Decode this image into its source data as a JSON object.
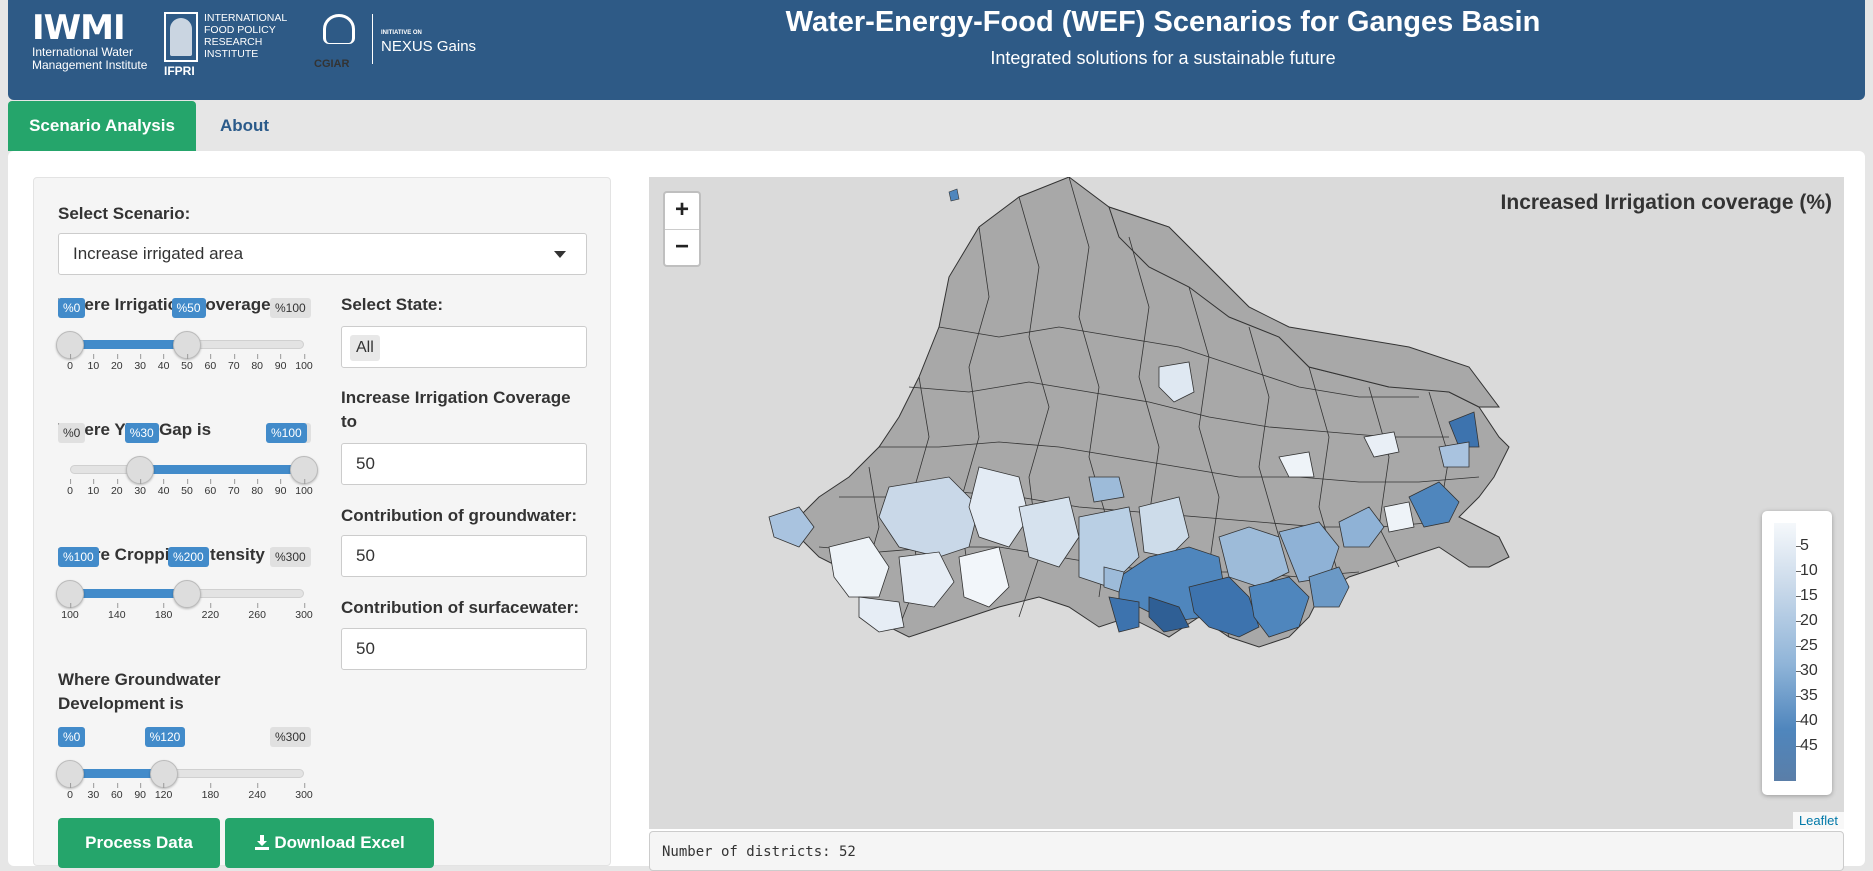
{
  "header": {
    "title": "Water-Energy-Food (WEF) Scenarios for Ganges Basin",
    "subtitle": "Integrated solutions for a sustainable future",
    "logos": {
      "iwmi_mark": "IWMI",
      "iwmi_name_1": "International Water",
      "iwmi_name_2": "Management Institute",
      "ifpri_name_1": "INTERNATIONAL",
      "ifpri_name_2": "FOOD POLICY",
      "ifpri_name_3": "RESEARCH",
      "ifpri_name_4": "INSTITUTE",
      "ifpri_abbr": "IFPRI",
      "cgiar": "CGIAR",
      "initiative": "INITIATIVE ON",
      "nexus": "NEXUS Gains"
    }
  },
  "tabs": [
    {
      "label": "Scenario Analysis",
      "active": true
    },
    {
      "label": "About",
      "active": false
    }
  ],
  "sidebar": {
    "select_scenario_label": "Select Scenario:",
    "select_scenario_value": "Increase irrigated area",
    "select_state_label": "Select State:",
    "select_state_value": "All",
    "increase_label": "Increase Irrigation Coverage to",
    "increase_value": "50",
    "groundwater_label": "Contribution of groundwater:",
    "groundwater_value": "50",
    "surfacewater_label": "Contribution of surfacewater:",
    "surfacewater_value": "50",
    "sliders": [
      {
        "label": "Where Irrigation Coverage is",
        "min": 0,
        "max": 100,
        "from": 0,
        "to": 50,
        "from_label": "%0",
        "to_label": "%50",
        "min_label": "%0",
        "max_label": "%100",
        "ticks": [
          "0",
          "10",
          "20",
          "30",
          "40",
          "50",
          "60",
          "70",
          "80",
          "90",
          "100"
        ]
      },
      {
        "label": "Where Yield Gap is",
        "min": 0,
        "max": 100,
        "from": 30,
        "to": 100,
        "from_label": "%30",
        "to_label": "%100",
        "min_label": "%0",
        "max_label": "%100",
        "ticks": [
          "0",
          "10",
          "20",
          "30",
          "40",
          "50",
          "60",
          "70",
          "80",
          "90",
          "100"
        ]
      },
      {
        "label": "Where Cropping Intensity is",
        "min": 100,
        "max": 300,
        "from": 100,
        "to": 200,
        "from_label": "%100",
        "to_label": "%200",
        "min_label": "%100",
        "max_label": "%300",
        "ticks": [
          "100",
          "140",
          "180",
          "220",
          "260",
          "300"
        ]
      },
      {
        "label": "Where Groundwater Development is",
        "min": 0,
        "max": 300,
        "from": 0,
        "to": 120,
        "from_label": "%0",
        "to_label": "%120",
        "min_label": "%0",
        "max_label": "%300",
        "ticks": [
          "0",
          "30",
          "60",
          "90",
          "120",
          "180",
          "240",
          "300"
        ]
      }
    ],
    "process_button": "Process Data",
    "download_button": "Download Excel",
    "download_icon": "download-icon"
  },
  "map": {
    "title": "Increased Irrigation coverage (%)",
    "zoom_in": "+",
    "zoom_out": "−",
    "legend_values": [
      "5",
      "10",
      "15",
      "20",
      "25",
      "30",
      "35",
      "40",
      "45"
    ],
    "legend_colors": [
      "#f5f8fb",
      "#5a7ea8"
    ],
    "base_color": "#a8a8a8",
    "attribution": "Leaflet"
  },
  "output": {
    "text": "Number of districts: 52"
  }
}
